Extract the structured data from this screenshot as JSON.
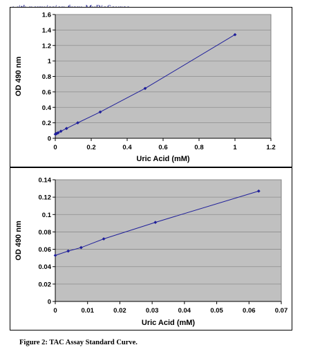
{
  "watermark": "with permission from MyBioSource",
  "caption": "Figure 2: TAC Assay Standard Curve.",
  "colors": {
    "plot_bg": "#c0c0c0",
    "line": "#1f1f9a",
    "grid": "#8c8c8c"
  },
  "chart_data": [
    {
      "type": "line",
      "xlabel": "Uric Acid (mM)",
      "ylabel": "OD 490 nm",
      "xlim": [
        0,
        1.2
      ],
      "ylim": [
        0,
        1.6
      ],
      "xticks": [
        "0",
        "0.2",
        "0.4",
        "0.6",
        "0.8",
        "1",
        "1.2"
      ],
      "yticks": [
        "0",
        "0.2",
        "0.4",
        "0.6",
        "0.8",
        "1",
        "1.2",
        "1.4",
        "1.6"
      ],
      "grid": "horizontal",
      "series": [
        {
          "x": [
            0,
            0.004,
            0.008,
            0.016,
            0.031,
            0.0625,
            0.125,
            0.25,
            0.5,
            1.0
          ],
          "values": [
            0.053,
            0.058,
            0.062,
            0.072,
            0.091,
            0.127,
            0.2,
            0.34,
            0.645,
            1.34
          ]
        }
      ]
    },
    {
      "type": "line",
      "xlabel": "Uric Acid (mM)",
      "ylabel": "OD 490 nm",
      "xlim": [
        0,
        0.07
      ],
      "ylim": [
        0,
        0.14
      ],
      "xticks": [
        "0",
        "0.01",
        "0.02",
        "0.03",
        "0.04",
        "0.05",
        "0.06",
        "0.07"
      ],
      "yticks": [
        "0",
        "0.02",
        "0.04",
        "0.06",
        "0.08",
        "0.1",
        "0.12",
        "0.14"
      ],
      "grid": "horizontal",
      "series": [
        {
          "x": [
            0,
            0.004,
            0.008,
            0.015,
            0.031,
            0.063
          ],
          "values": [
            0.053,
            0.058,
            0.062,
            0.072,
            0.091,
            0.127
          ]
        }
      ]
    }
  ]
}
